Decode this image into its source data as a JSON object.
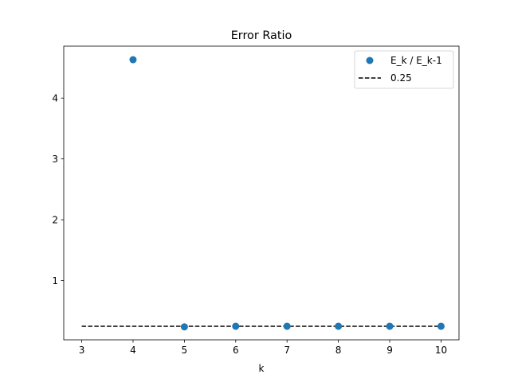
{
  "chart_data": {
    "type": "scatter",
    "title": "Error Ratio",
    "xlabel": "k",
    "ylabel": "",
    "xlim": [
      2.65,
      10.35
    ],
    "ylim": [
      0.027,
      4.853
    ],
    "xticks": [
      3,
      4,
      5,
      6,
      7,
      8,
      9,
      10
    ],
    "yticks": [
      1,
      2,
      3,
      4
    ],
    "grid": false,
    "legend_position": "top-right",
    "series": [
      {
        "name": "E_k / E_k-1",
        "kind": "scatter",
        "color": "#1f77b4",
        "x": [
          4,
          5,
          6,
          7,
          8,
          9,
          10
        ],
        "y": [
          4.63,
          0.24,
          0.25,
          0.25,
          0.25,
          0.25,
          0.25
        ]
      },
      {
        "name": "0.25",
        "kind": "line",
        "style": "dashed",
        "color": "#000000",
        "x": [
          3,
          10
        ],
        "y": [
          0.25,
          0.25
        ]
      }
    ]
  }
}
